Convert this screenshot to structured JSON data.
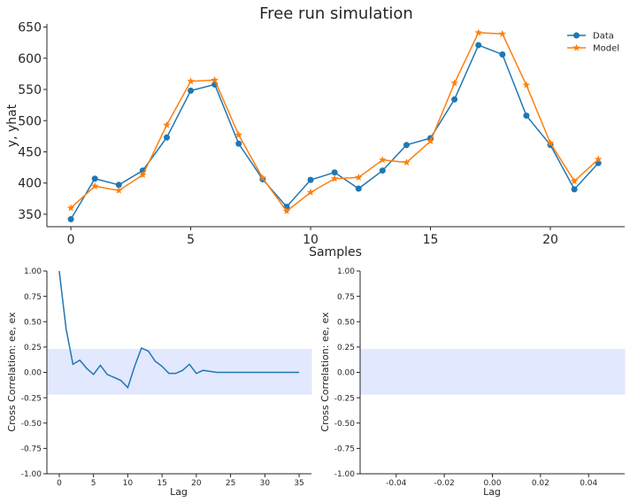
{
  "chart_data": [
    {
      "type": "line",
      "title": "Free run simulation",
      "xlabel": "Samples",
      "ylabel": "y, yhat",
      "xlim": [
        -1,
        23.1
      ],
      "ylim": [
        330,
        655
      ],
      "xticks": [
        0,
        5,
        10,
        15,
        20
      ],
      "yticks": [
        350,
        400,
        450,
        500,
        550,
        600,
        650
      ],
      "x": [
        0,
        1,
        2,
        3,
        4,
        5,
        6,
        7,
        8,
        9,
        10,
        11,
        12,
        13,
        14,
        15,
        16,
        17,
        18,
        19,
        20,
        21,
        22
      ],
      "series": [
        {
          "name": "Data",
          "color": "#1f77b4",
          "marker": "circle",
          "values": [
            342,
            407,
            397,
            420,
            473,
            548,
            558,
            463,
            406,
            362,
            405,
            417,
            391,
            420,
            461,
            472,
            534,
            621,
            606,
            508,
            461,
            390,
            432
          ]
        },
        {
          "name": "Model",
          "color": "#ff7f0e",
          "marker": "star",
          "values": [
            360,
            395,
            388,
            413,
            493,
            563,
            565,
            477,
            408,
            355,
            385,
            407,
            409,
            437,
            433,
            467,
            560,
            641,
            639,
            557,
            464,
            403,
            438
          ]
        }
      ],
      "legend": "top-right"
    },
    {
      "type": "line",
      "xlabel": "Lag",
      "ylabel": "Cross Correlation: ee, ex",
      "xlim": [
        -1.8,
        36.8
      ],
      "ylim": [
        -1.0,
        1.0
      ],
      "xticks": [
        0,
        5,
        10,
        15,
        20,
        25,
        30,
        35
      ],
      "yticks": [
        -1.0,
        -0.75,
        -0.5,
        -0.25,
        0.0,
        0.25,
        0.5,
        0.75,
        1.0
      ],
      "confidence_band": [
        -0.22,
        0.23
      ],
      "band_color": "#e2e8fd",
      "line_color": "#1f77b4",
      "x": [
        0,
        1,
        2,
        3,
        4,
        5,
        6,
        7,
        8,
        9,
        10,
        11,
        12,
        13,
        14,
        15,
        16,
        17,
        18,
        19,
        20,
        21,
        22,
        23,
        24,
        25,
        26,
        27,
        28,
        29,
        30,
        31,
        32,
        33,
        34,
        35
      ],
      "values": [
        1.0,
        0.43,
        0.08,
        0.12,
        0.04,
        -0.02,
        0.07,
        -0.02,
        -0.05,
        -0.08,
        -0.15,
        0.06,
        0.24,
        0.21,
        0.11,
        0.06,
        -0.01,
        -0.01,
        0.02,
        0.08,
        -0.01,
        0.02,
        0.01,
        0.0,
        0.0,
        0.0,
        0.0,
        0.0,
        0.0,
        0.0,
        0.0,
        0.0,
        0.0,
        0.0,
        0.0,
        0.0
      ]
    },
    {
      "type": "line",
      "xlabel": "Lag",
      "ylabel": "Cross Correlation: ee, ex",
      "xlim": [
        -0.055,
        0.055
      ],
      "ylim": [
        -1.0,
        1.0
      ],
      "xticks": [
        -0.04,
        -0.02,
        0.0,
        0.02,
        0.04
      ],
      "yticks": [
        -1.0,
        -0.75,
        -0.5,
        -0.25,
        0.0,
        0.25,
        0.5,
        0.75,
        1.0
      ],
      "confidence_band": [
        -0.22,
        0.23
      ],
      "band_color": "#e2e8fd",
      "values": []
    }
  ]
}
